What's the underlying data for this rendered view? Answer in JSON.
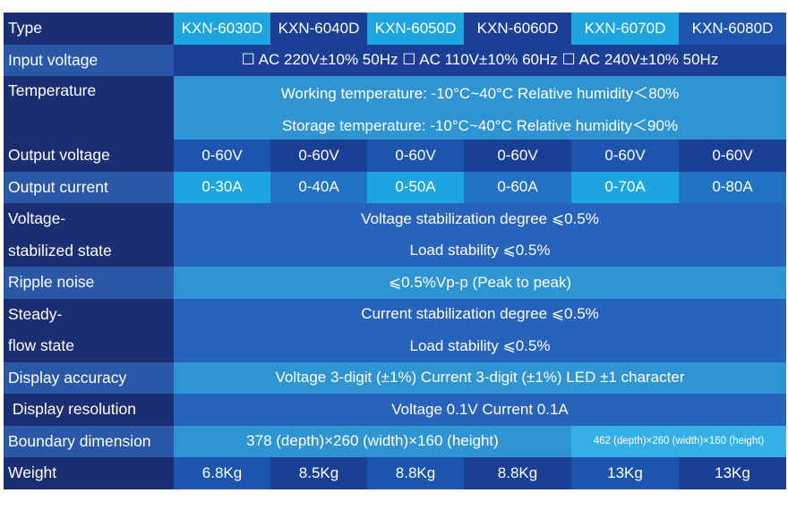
{
  "table": {
    "type_label": "Type",
    "models": [
      "KXN-6030D",
      "KXN-6040D",
      "KXN-6050D",
      "KXN-6060D",
      "KXN-6070D",
      "KXN-6080D"
    ],
    "input_voltage": {
      "label": "Input voltage",
      "value": "☐ AC 220V±10% 50Hz ☐ AC 110V±10% 60Hz ☐ AC 240V±10% 50Hz"
    },
    "temperature": {
      "label": "Temperature",
      "line1": "Working temperature: -10°C~40°C Relative humidity＜80%",
      "line2": "Storage temperature: -10°C~40°C Relative humidity＜90%"
    },
    "output_voltage": {
      "label": "Output voltage",
      "values": [
        "0-60V",
        "0-60V",
        "0-60V",
        "0-60V",
        "0-60V",
        "0-60V"
      ]
    },
    "output_current": {
      "label": "Output current",
      "values": [
        "0-30A",
        "0-40A",
        "0-50A",
        "0-60A",
        "0-70A",
        "0-80A"
      ]
    },
    "voltage_stabilized": {
      "label_line1": "Voltage-",
      "label_line2": "stabilized state",
      "line1": "Voltage stabilization degree ⩽0.5%",
      "line2": "Load stability ⩽0.5%"
    },
    "ripple_noise": {
      "label": "Ripple noise",
      "value": "⩽0.5%Vp-p (Peak to peak)"
    },
    "steady_flow": {
      "label_line1": "Steady-",
      "label_line2": "flow state",
      "line1": "Current stabilization degree ⩽0.5%",
      "line2": "Load stability ⩽0.5%"
    },
    "display_accuracy": {
      "label": "Display accuracy",
      "value": "Voltage 3-digit (±1%) Current 3-digit (±1%) LED ±1 character"
    },
    "display_resolution": {
      "label": " Display resolution",
      "value": "Voltage 0.1V Current 0.1A"
    },
    "boundary_dimension": {
      "label": "Boundary dimension",
      "value_small": "378 (depth)×260 (width)×160 (height)",
      "value_large": "462 (depth)×260 (width)×160 (height)"
    },
    "weight": {
      "label": "Weight",
      "values": [
        "6.8Kg",
        "8.5Kg",
        "8.8Kg",
        "8.8Kg",
        "13Kg",
        "13Kg"
      ]
    }
  }
}
